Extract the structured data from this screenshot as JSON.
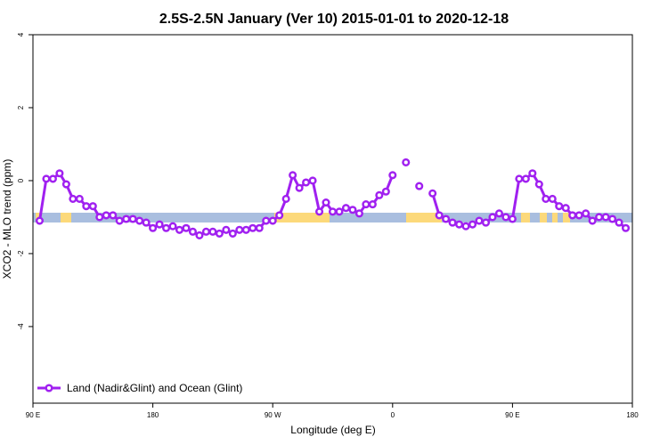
{
  "chart_data": {
    "type": "line",
    "title": "2.5S-2.5N January (Ver 10)   2015-01-01 to 2020-12-18",
    "x_label": "Longitude (deg E)",
    "y_label": "XCO2 - MLO trend (ppm)",
    "x": [
      95,
      100,
      105,
      110,
      115,
      120,
      125,
      130,
      135,
      140,
      145,
      150,
      155,
      160,
      165,
      170,
      175,
      180,
      185,
      190,
      195,
      200,
      205,
      210,
      215,
      220,
      225,
      230,
      235,
      240,
      245,
      250,
      255,
      260,
      265,
      270,
      275,
      280,
      285,
      290,
      295,
      300,
      305,
      310,
      315,
      320,
      325,
      330,
      335,
      340,
      345,
      350,
      355,
      360,
      365,
      370,
      375,
      380,
      385,
      390,
      395,
      400,
      405,
      410,
      415,
      420,
      425,
      430,
      435,
      440,
      445,
      450,
      455,
      460,
      465,
      470,
      475,
      480,
      485,
      490,
      495,
      500,
      505,
      510,
      515,
      520,
      525,
      530,
      535
    ],
    "series": [
      {
        "name": "Land (Nadir&Glint) and Ocean (Glint)",
        "color": "#a020f0",
        "values": [
          -1.1,
          0.05,
          0.05,
          0.2,
          -0.1,
          -0.5,
          -0.5,
          -0.7,
          -0.7,
          -1.0,
          -0.95,
          -0.95,
          -1.1,
          -1.05,
          -1.05,
          -1.1,
          -1.15,
          -1.3,
          -1.2,
          -1.3,
          -1.25,
          -1.35,
          -1.3,
          -1.4,
          -1.5,
          -1.4,
          -1.4,
          -1.45,
          -1.35,
          -1.45,
          -1.35,
          -1.35,
          -1.3,
          -1.3,
          -1.1,
          -1.1,
          -0.95,
          -0.5,
          0.15,
          -0.2,
          -0.05,
          0,
          -0.85,
          -0.6,
          -0.85,
          -0.85,
          -0.75,
          -0.8,
          -0.9,
          -0.65,
          -0.65,
          -0.4,
          -0.3,
          0.15,
          null,
          0.5,
          null,
          -0.15,
          null,
          -0.35,
          -0.95,
          -1.05,
          -1.15,
          -1.2,
          -1.25,
          -1.2,
          -1.1,
          -1.15,
          -1.0,
          -0.9,
          -1.0,
          -1.05,
          0.05,
          0.05,
          0.2,
          -0.1,
          -0.5,
          -0.5,
          -0.7,
          -0.75,
          -0.95,
          -0.95,
          -0.9,
          -1.1,
          -1.0,
          -1.0,
          -1.05,
          -1.15,
          -1.3
        ]
      }
    ],
    "xlim": [
      90,
      540
    ],
    "ylim": [
      -6.1,
      4
    ],
    "xticks": [
      {
        "value": 90,
        "label": "90 E"
      },
      180,
      {
        "value": 270,
        "label": "90 W"
      },
      {
        "value": 360,
        "label": "0"
      },
      {
        "value": 450,
        "label": "90 E"
      },
      {
        "value": 540,
        "label": "180"
      }
    ],
    "yticks": [
      4,
      2,
      0,
      -2,
      -4
    ],
    "legend": "bottom-left"
  }
}
